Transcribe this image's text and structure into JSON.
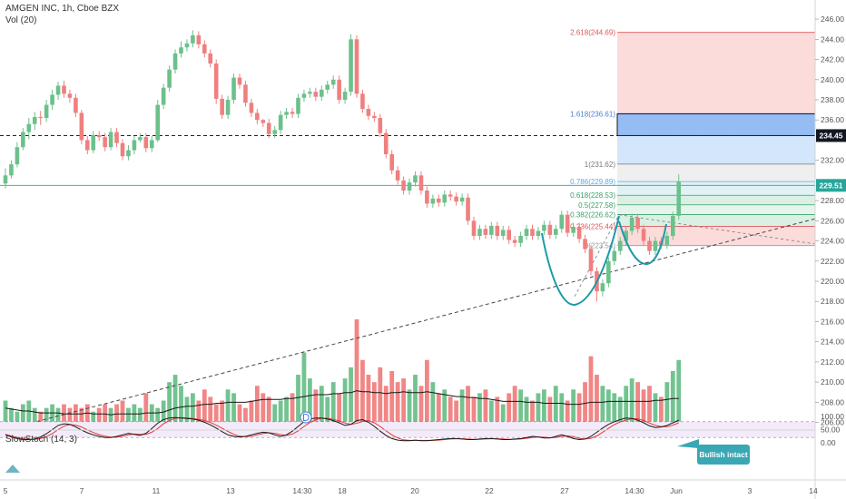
{
  "legend": {
    "symbol": "AMGEN INC, 1h, Cboe BZX",
    "volume": "Vol (20)",
    "oscillator": "SlowStoch (14, 3)"
  },
  "annotation": {
    "text": "Bullish intact"
  },
  "colors": {
    "up": "#6cc08b",
    "down": "#f07f7f",
    "trendline": "#444444",
    "cup": "#1c9aa8",
    "fib_red": "#fbd5d5",
    "fib_green": "#d4ede0",
    "fib_blue": "#cbe2fb",
    "fib_blue_dark": "#8fb7f3",
    "fib_grey": "#ececec",
    "current_price_bg": "#26a69a",
    "level_bg": "#131722",
    "stoch_k": "#1a1a1a",
    "stoch_d": "#e53935",
    "stoch_band": "#f3ebfa",
    "badge": "#3aa7b4"
  },
  "chart_data": {
    "type": "candlestick",
    "title": "AMGEN INC, 1h, Cboe BZX",
    "xlabels": [
      "5",
      "7",
      "11",
      "13",
      "14:30",
      "18",
      "20",
      "22",
      "27",
      "14:30",
      "Jun",
      "3",
      "14"
    ],
    "price_axis": {
      "ylim": [
        205.6,
        247
      ],
      "ticks": [
        206.0,
        208.0,
        210.0,
        212.0,
        214.0,
        216.0,
        218.0,
        220.0,
        222.0,
        224.0,
        226.0,
        228.0,
        232.0,
        236.0,
        238.0,
        240.0,
        242.0,
        244.0,
        246.0
      ]
    },
    "current_price": "229.51",
    "level_label": "234.45",
    "fib_levels": [
      {
        "label": "2.618(244.69)",
        "value": 244.69
      },
      {
        "label": "1.618(236.61)",
        "value": 236.61
      },
      {
        "label": "1(231.62)",
        "value": 231.62
      },
      {
        "label": "0.786(229.89)",
        "value": 229.89
      },
      {
        "label": "0.618(228.53)",
        "value": 228.53
      },
      {
        "label": "0.5(227.58)",
        "value": 227.58
      },
      {
        "label": "0.382(226.62)",
        "value": 226.62
      },
      {
        "label": "0.236(225.44)",
        "value": 225.44
      },
      {
        "label": "0(223.54)",
        "value": 223.54
      }
    ],
    "candles": [
      [
        229.7,
        230.5,
        229.2,
        231.2
      ],
      [
        230.5,
        231.6,
        230.2,
        232.0
      ],
      [
        231.6,
        233.3,
        231.3,
        233.8
      ],
      [
        233.3,
        234.8,
        233.0,
        235.2
      ],
      [
        234.8,
        235.6,
        234.1,
        236.2
      ],
      [
        235.6,
        236.3,
        235.0,
        236.8
      ],
      [
        236.3,
        236.2,
        235.5,
        236.9
      ],
      [
        236.2,
        237.5,
        235.8,
        238.0
      ],
      [
        237.5,
        238.5,
        237.0,
        239.0
      ],
      [
        238.5,
        239.4,
        238.0,
        239.8
      ],
      [
        239.4,
        238.6,
        238.2,
        239.9
      ],
      [
        238.6,
        238.2,
        237.7,
        239.0
      ],
      [
        238.2,
        236.7,
        236.3,
        238.6
      ],
      [
        236.7,
        234.0,
        233.6,
        237.0
      ],
      [
        234.0,
        233.0,
        232.6,
        234.4
      ],
      [
        233.0,
        234.5,
        232.7,
        234.9
      ],
      [
        234.5,
        234.3,
        233.9,
        234.9
      ],
      [
        234.3,
        233.3,
        232.9,
        234.7
      ],
      [
        233.3,
        234.8,
        233.0,
        235.2
      ],
      [
        234.8,
        233.7,
        233.3,
        235.2
      ],
      [
        233.7,
        232.4,
        232.0,
        234.1
      ],
      [
        232.4,
        233.0,
        232.0,
        233.5
      ],
      [
        233.0,
        234.0,
        232.6,
        234.4
      ],
      [
        234.0,
        234.3,
        233.8,
        234.7
      ],
      [
        234.3,
        233.2,
        232.8,
        234.7
      ],
      [
        233.2,
        234.0,
        232.8,
        234.4
      ],
      [
        234.0,
        237.5,
        233.8,
        238.0
      ],
      [
        237.5,
        239.2,
        237.1,
        239.6
      ],
      [
        239.2,
        241.0,
        238.8,
        241.4
      ],
      [
        241.0,
        242.6,
        240.6,
        243.0
      ],
      [
        242.6,
        243.2,
        242.2,
        243.8
      ],
      [
        243.2,
        243.6,
        242.8,
        244.0
      ],
      [
        243.6,
        244.4,
        243.2,
        244.9
      ],
      [
        244.4,
        243.5,
        243.1,
        244.8
      ],
      [
        243.5,
        242.6,
        242.2,
        243.9
      ],
      [
        242.6,
        241.6,
        241.2,
        243.0
      ],
      [
        241.6,
        238.1,
        237.6,
        242.0
      ],
      [
        238.1,
        236.5,
        236.1,
        238.5
      ],
      [
        236.5,
        238.0,
        236.1,
        238.4
      ],
      [
        238.0,
        240.2,
        237.6,
        240.6
      ],
      [
        240.2,
        239.5,
        239.1,
        240.6
      ],
      [
        239.5,
        237.7,
        237.3,
        239.9
      ],
      [
        237.7,
        236.7,
        236.3,
        238.1
      ],
      [
        236.7,
        236.0,
        235.6,
        237.1
      ],
      [
        236.0,
        235.7,
        235.3,
        236.1
      ],
      [
        235.7,
        234.6,
        234.2,
        236.1
      ],
      [
        234.6,
        235.0,
        234.2,
        235.4
      ],
      [
        235.0,
        236.5,
        234.6,
        236.9
      ],
      [
        236.5,
        236.8,
        236.1,
        237.2
      ],
      [
        236.8,
        236.6,
        236.2,
        237.2
      ],
      [
        236.6,
        238.2,
        236.2,
        238.6
      ],
      [
        238.2,
        238.6,
        237.8,
        239.0
      ],
      [
        238.6,
        238.8,
        238.2,
        239.2
      ],
      [
        238.8,
        238.3,
        237.9,
        239.2
      ],
      [
        238.3,
        239.0,
        237.9,
        239.4
      ],
      [
        239.0,
        239.5,
        238.6,
        239.9
      ],
      [
        239.5,
        240.0,
        239.1,
        240.4
      ],
      [
        240.0,
        238.0,
        237.6,
        240.4
      ],
      [
        238.0,
        238.8,
        237.6,
        239.2
      ],
      [
        238.8,
        244.0,
        238.4,
        244.5
      ],
      [
        244.0,
        238.6,
        238.2,
        244.4
      ],
      [
        238.6,
        237.1,
        236.7,
        239.0
      ],
      [
        237.1,
        236.4,
        236.0,
        237.5
      ],
      [
        236.4,
        236.2,
        235.8,
        236.8
      ],
      [
        236.2,
        234.7,
        234.3,
        236.6
      ],
      [
        234.7,
        232.6,
        232.2,
        235.1
      ],
      [
        232.6,
        231.0,
        230.6,
        233.0
      ],
      [
        231.0,
        230.0,
        229.6,
        231.4
      ],
      [
        230.0,
        229.0,
        228.6,
        230.4
      ],
      [
        229.0,
        229.8,
        228.6,
        230.2
      ],
      [
        229.8,
        230.5,
        229.4,
        230.9
      ],
      [
        230.5,
        229.0,
        228.6,
        230.9
      ],
      [
        229.0,
        227.7,
        227.3,
        229.4
      ],
      [
        227.7,
        228.2,
        227.3,
        228.6
      ],
      [
        228.2,
        227.8,
        227.4,
        228.6
      ],
      [
        227.8,
        228.6,
        227.4,
        229.0
      ],
      [
        228.6,
        228.4,
        228.0,
        229.0
      ],
      [
        228.4,
        227.9,
        227.5,
        228.8
      ],
      [
        227.9,
        228.3,
        227.5,
        228.7
      ],
      [
        228.3,
        226.0,
        225.6,
        228.7
      ],
      [
        226.0,
        224.5,
        224.1,
        226.4
      ],
      [
        224.5,
        225.2,
        224.1,
        225.6
      ],
      [
        225.2,
        224.6,
        224.2,
        225.6
      ],
      [
        224.6,
        225.5,
        224.2,
        225.9
      ],
      [
        225.5,
        224.5,
        224.1,
        225.9
      ],
      [
        224.5,
        225.1,
        224.1,
        225.5
      ],
      [
        225.1,
        224.1,
        223.7,
        225.5
      ],
      [
        224.1,
        223.8,
        223.4,
        224.5
      ],
      [
        223.8,
        224.5,
        223.4,
        224.9
      ],
      [
        224.5,
        225.2,
        224.1,
        225.6
      ],
      [
        225.2,
        224.5,
        224.1,
        225.6
      ],
      [
        224.5,
        225.0,
        224.1,
        225.4
      ],
      [
        225.0,
        225.6,
        224.6,
        226.0
      ],
      [
        225.6,
        224.6,
        224.2,
        226.0
      ],
      [
        224.6,
        225.2,
        224.2,
        225.6
      ],
      [
        225.2,
        226.6,
        224.8,
        227.0
      ],
      [
        226.6,
        224.8,
        224.4,
        227.0
      ],
      [
        224.8,
        225.4,
        224.4,
        225.8
      ],
      [
        225.4,
        224.2,
        223.8,
        225.8
      ],
      [
        224.2,
        223.2,
        222.8,
        224.6
      ],
      [
        223.2,
        221.0,
        220.6,
        223.6
      ],
      [
        221.0,
        219.0,
        218.0,
        221.4
      ],
      [
        219.0,
        219.8,
        218.5,
        220.2
      ],
      [
        219.8,
        222.0,
        219.4,
        222.4
      ],
      [
        222.0,
        223.0,
        221.6,
        223.4
      ],
      [
        223.0,
        224.0,
        222.6,
        224.4
      ],
      [
        224.0,
        225.0,
        223.6,
        225.4
      ],
      [
        225.0,
        226.3,
        224.6,
        226.7
      ],
      [
        226.3,
        225.2,
        224.8,
        226.7
      ],
      [
        225.2,
        224.0,
        223.6,
        225.6
      ],
      [
        224.0,
        223.0,
        222.6,
        224.4
      ],
      [
        223.0,
        224.0,
        222.6,
        224.4
      ],
      [
        224.0,
        223.6,
        223.2,
        224.4
      ],
      [
        223.6,
        224.5,
        223.2,
        224.9
      ],
      [
        224.5,
        226.5,
        224.1,
        226.9
      ],
      [
        226.5,
        229.9,
        226.1,
        230.6
      ]
    ],
    "volume": [
      7,
      5,
      4,
      6,
      7,
      5,
      4,
      5,
      6,
      5,
      6,
      5,
      6,
      5,
      6,
      4,
      5,
      6,
      5,
      6,
      7,
      5,
      6,
      5,
      9,
      6,
      5,
      7,
      12,
      14,
      11,
      8,
      9,
      7,
      10,
      8,
      6,
      7,
      10,
      9,
      6,
      5,
      7,
      11,
      9,
      8,
      6,
      7,
      8,
      9,
      14,
      20,
      13,
      10,
      11,
      8,
      12,
      9,
      13,
      16,
      29,
      18,
      14,
      12,
      16,
      11,
      15,
      12,
      13,
      10,
      14,
      11,
      18,
      12,
      9,
      10,
      8,
      7,
      10,
      11,
      8,
      9,
      10,
      7,
      8,
      6,
      9,
      11,
      10,
      8,
      7,
      9,
      10,
      8,
      11,
      9,
      7,
      10,
      9,
      12,
      19,
      14,
      11,
      10,
      9,
      8,
      11,
      13,
      12,
      10,
      11,
      9,
      8,
      12,
      15,
      18
    ],
    "volume_ma": [
      0.19,
      0.18,
      0.17,
      0.16,
      0.16,
      0.15,
      0.14,
      0.14,
      0.14,
      0.14,
      0.13,
      0.13,
      0.13,
      0.13,
      0.14,
      0.13,
      0.13,
      0.13,
      0.12,
      0.13,
      0.13,
      0.13,
      0.13,
      0.13,
      0.14,
      0.14,
      0.14,
      0.15,
      0.17,
      0.19,
      0.2,
      0.21,
      0.21,
      0.22,
      0.23,
      0.23,
      0.24,
      0.24,
      0.25,
      0.25,
      0.25,
      0.25,
      0.26,
      0.27,
      0.28,
      0.28,
      0.28,
      0.28,
      0.29,
      0.29,
      0.3,
      0.31,
      0.32,
      0.33,
      0.33,
      0.33,
      0.34,
      0.34,
      0.35,
      0.35,
      0.37,
      0.36,
      0.36,
      0.35,
      0.35,
      0.34,
      0.35,
      0.35,
      0.36,
      0.35,
      0.35,
      0.35,
      0.36,
      0.35,
      0.34,
      0.33,
      0.32,
      0.31,
      0.31,
      0.3,
      0.3,
      0.29,
      0.29,
      0.28,
      0.27,
      0.26,
      0.26,
      0.26,
      0.26,
      0.25,
      0.25,
      0.25,
      0.24,
      0.24,
      0.24,
      0.24,
      0.23,
      0.23,
      0.23,
      0.24,
      0.25,
      0.25,
      0.25,
      0.26,
      0.26,
      0.26,
      0.26,
      0.26,
      0.26,
      0.26,
      0.26,
      0.27,
      0.27,
      0.28,
      0.29,
      0.29
    ],
    "stoch_axis": {
      "ylim": [
        0,
        100
      ],
      "ticks": [
        "100.00",
        "50.00",
        "0.00"
      ]
    },
    "stoch_k": [
      30,
      22,
      16,
      12,
      12,
      14,
      22,
      34,
      50,
      66,
      72,
      70,
      60,
      48,
      38,
      30,
      24,
      20,
      20,
      24,
      30,
      36,
      32,
      28,
      36,
      54,
      74,
      88,
      94,
      96,
      94,
      92,
      90,
      86,
      78,
      68,
      56,
      42,
      30,
      24,
      22,
      24,
      30,
      36,
      40,
      38,
      30,
      24,
      30,
      44,
      62,
      80,
      90,
      94,
      94,
      90,
      84,
      76,
      66,
      70,
      84,
      88,
      78,
      62,
      44,
      28,
      16,
      10,
      8,
      8,
      10,
      8,
      8,
      10,
      12,
      14,
      16,
      16,
      14,
      12,
      12,
      14,
      16,
      16,
      14,
      12,
      12,
      14,
      16,
      20,
      24,
      22,
      18,
      18,
      24,
      30,
      24,
      16,
      12,
      14,
      24,
      40,
      56,
      70,
      80,
      88,
      94,
      92,
      86,
      76,
      64,
      58,
      60,
      66,
      76,
      86
    ],
    "stoch_d": [
      32,
      26,
      20,
      15,
      13,
      13,
      16,
      23,
      35,
      50,
      63,
      69,
      67,
      60,
      49,
      39,
      31,
      25,
      21,
      21,
      25,
      30,
      33,
      32,
      32,
      40,
      54,
      72,
      85,
      93,
      95,
      94,
      92,
      89,
      85,
      77,
      67,
      55,
      43,
      32,
      25,
      23,
      25,
      30,
      35,
      38,
      36,
      31,
      28,
      33,
      45,
      62,
      77,
      88,
      93,
      93,
      89,
      83,
      75,
      70,
      74,
      81,
      84,
      76,
      62,
      45,
      30,
      18,
      11,
      9,
      9,
      9,
      9,
      9,
      10,
      12,
      14,
      15,
      15,
      14,
      13,
      13,
      14,
      15,
      15,
      14,
      13,
      13,
      14,
      17,
      20,
      22,
      21,
      19,
      20,
      24,
      26,
      23,
      17,
      14,
      17,
      26,
      40,
      55,
      69,
      79,
      87,
      91,
      91,
      85,
      75,
      66,
      61,
      61,
      67,
      76
    ]
  }
}
